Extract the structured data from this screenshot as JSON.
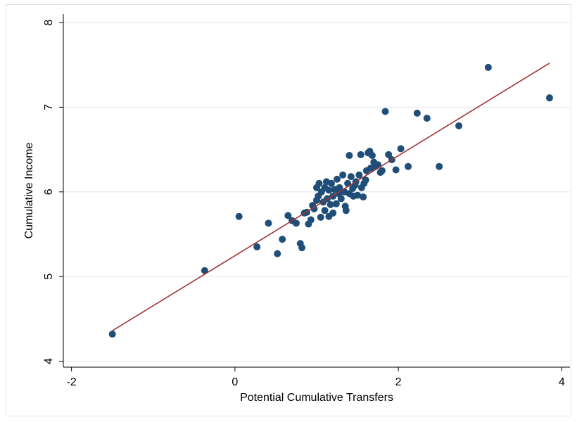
{
  "chart_data": {
    "type": "scatter",
    "title": "",
    "xlabel": "Potential Cumulative Transfers",
    "ylabel": "Cumulative Income",
    "xlim": [
      -2.1,
      4.1
    ],
    "ylim": [
      3.93,
      8.1
    ],
    "x_ticks": [
      -2,
      0,
      2,
      4
    ],
    "x_tick_labels": [
      "-2",
      "0",
      "2",
      "4"
    ],
    "y_ticks": [
      4,
      5,
      6,
      7,
      8
    ],
    "y_tick_labels": [
      "4",
      "5",
      "6",
      "7",
      "8"
    ],
    "grid": "horizontal",
    "legend": "none",
    "colors": {
      "points": "#1f4e79",
      "fit_line": "#a03535",
      "grid": "#e3eaf0"
    },
    "fit_line": {
      "x": [
        -1.5,
        3.85
      ],
      "y": [
        4.36,
        7.52
      ]
    },
    "points": [
      {
        "x": -1.5,
        "y": 4.32
      },
      {
        "x": -0.37,
        "y": 5.07
      },
      {
        "x": 0.05,
        "y": 5.71
      },
      {
        "x": 0.27,
        "y": 5.35
      },
      {
        "x": 0.41,
        "y": 5.63
      },
      {
        "x": 0.52,
        "y": 5.27
      },
      {
        "x": 0.58,
        "y": 5.44
      },
      {
        "x": 0.65,
        "y": 5.72
      },
      {
        "x": 0.7,
        "y": 5.66
      },
      {
        "x": 0.75,
        "y": 5.63
      },
      {
        "x": 0.8,
        "y": 5.39
      },
      {
        "x": 0.82,
        "y": 5.34
      },
      {
        "x": 0.85,
        "y": 5.75
      },
      {
        "x": 0.88,
        "y": 5.76
      },
      {
        "x": 0.9,
        "y": 5.62
      },
      {
        "x": 0.93,
        "y": 5.67
      },
      {
        "x": 0.95,
        "y": 5.84
      },
      {
        "x": 0.97,
        "y": 5.8
      },
      {
        "x": 1.0,
        "y": 6.05
      },
      {
        "x": 1.0,
        "y": 5.9
      },
      {
        "x": 1.02,
        "y": 5.95
      },
      {
        "x": 1.03,
        "y": 6.1
      },
      {
        "x": 1.05,
        "y": 5.7
      },
      {
        "x": 1.06,
        "y": 6.0
      },
      {
        "x": 1.08,
        "y": 5.88
      },
      {
        "x": 1.1,
        "y": 6.05
      },
      {
        "x": 1.1,
        "y": 5.78
      },
      {
        "x": 1.12,
        "y": 6.12
      },
      {
        "x": 1.13,
        "y": 5.92
      },
      {
        "x": 1.15,
        "y": 5.71
      },
      {
        "x": 1.15,
        "y": 6.02
      },
      {
        "x": 1.17,
        "y": 5.85
      },
      {
        "x": 1.18,
        "y": 6.1
      },
      {
        "x": 1.2,
        "y": 5.95
      },
      {
        "x": 1.2,
        "y": 5.75
      },
      {
        "x": 1.22,
        "y": 6.03
      },
      {
        "x": 1.24,
        "y": 5.86
      },
      {
        "x": 1.25,
        "y": 6.15
      },
      {
        "x": 1.27,
        "y": 5.98
      },
      {
        "x": 1.28,
        "y": 6.05
      },
      {
        "x": 1.3,
        "y": 5.92
      },
      {
        "x": 1.32,
        "y": 6.2
      },
      {
        "x": 1.34,
        "y": 6.0
      },
      {
        "x": 1.35,
        "y": 5.83
      },
      {
        "x": 1.36,
        "y": 5.78
      },
      {
        "x": 1.38,
        "y": 6.1
      },
      {
        "x": 1.4,
        "y": 6.43
      },
      {
        "x": 1.4,
        "y": 5.98
      },
      {
        "x": 1.42,
        "y": 6.18
      },
      {
        "x": 1.44,
        "y": 6.04
      },
      {
        "x": 1.45,
        "y": 5.95
      },
      {
        "x": 1.47,
        "y": 6.08
      },
      {
        "x": 1.48,
        "y": 6.12
      },
      {
        "x": 1.5,
        "y": 5.96
      },
      {
        "x": 1.52,
        "y": 6.2
      },
      {
        "x": 1.54,
        "y": 6.44
      },
      {
        "x": 1.55,
        "y": 6.05
      },
      {
        "x": 1.57,
        "y": 5.94
      },
      {
        "x": 1.58,
        "y": 6.1
      },
      {
        "x": 1.6,
        "y": 6.14
      },
      {
        "x": 1.61,
        "y": 6.25
      },
      {
        "x": 1.63,
        "y": 6.46
      },
      {
        "x": 1.65,
        "y": 6.48
      },
      {
        "x": 1.66,
        "y": 6.28
      },
      {
        "x": 1.68,
        "y": 6.43
      },
      {
        "x": 1.7,
        "y": 6.35
      },
      {
        "x": 1.72,
        "y": 6.3
      },
      {
        "x": 1.75,
        "y": 6.32
      },
      {
        "x": 1.78,
        "y": 6.23
      },
      {
        "x": 1.8,
        "y": 6.25
      },
      {
        "x": 1.84,
        "y": 6.95
      },
      {
        "x": 1.88,
        "y": 6.44
      },
      {
        "x": 1.92,
        "y": 6.38
      },
      {
        "x": 1.97,
        "y": 6.26
      },
      {
        "x": 2.03,
        "y": 6.51
      },
      {
        "x": 2.12,
        "y": 6.3
      },
      {
        "x": 2.23,
        "y": 6.93
      },
      {
        "x": 2.35,
        "y": 6.87
      },
      {
        "x": 2.5,
        "y": 6.3
      },
      {
        "x": 2.74,
        "y": 6.78
      },
      {
        "x": 3.1,
        "y": 7.47
      },
      {
        "x": 3.85,
        "y": 7.11
      }
    ]
  }
}
